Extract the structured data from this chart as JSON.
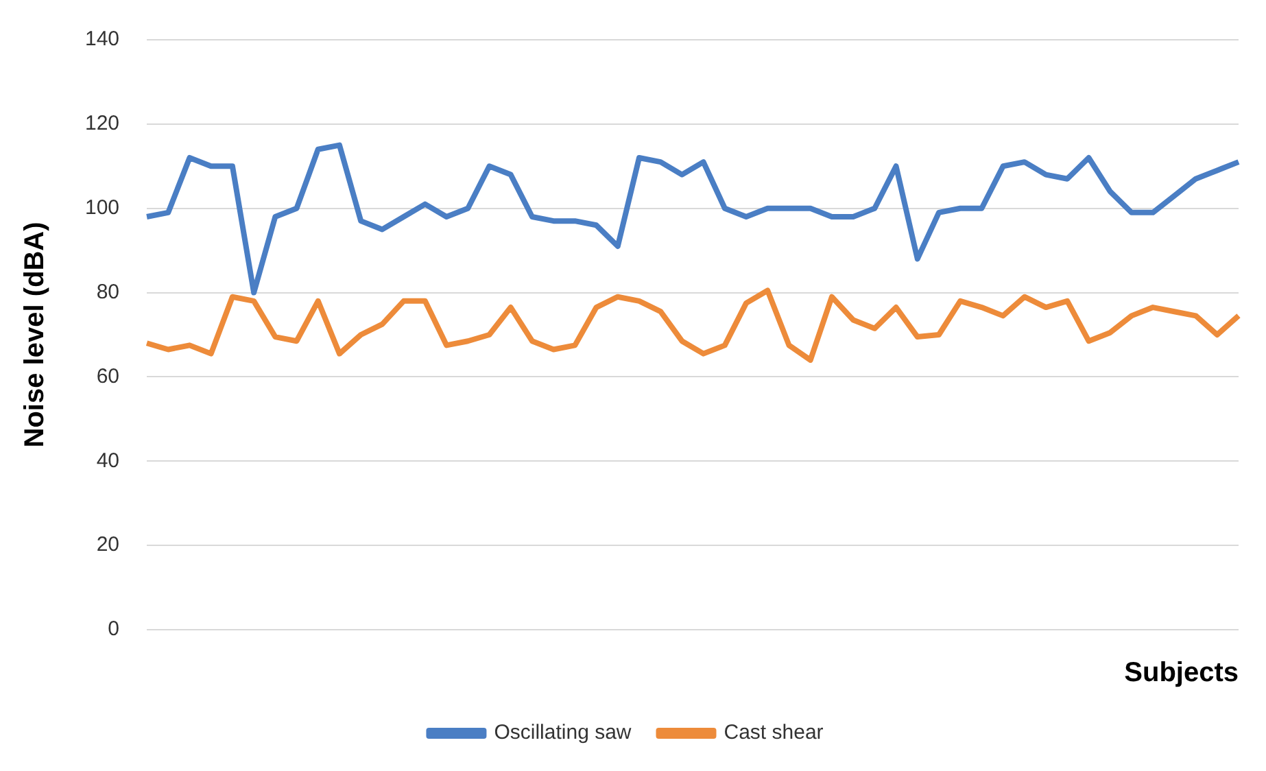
{
  "chart_data": {
    "type": "line",
    "xlabel": "Subjects",
    "ylabel": "Noise level (dBA)",
    "categories": [
      null,
      null,
      null,
      null,
      null,
      null,
      null,
      null,
      null,
      null,
      null,
      null,
      null,
      null,
      null,
      null,
      null,
      null,
      null,
      null,
      null,
      null,
      null,
      null,
      null,
      null,
      null,
      null,
      null,
      null,
      null,
      null,
      null,
      null,
      null,
      null,
      null,
      null,
      null,
      null,
      null,
      null,
      null,
      null,
      null,
      null,
      null,
      null,
      null,
      null,
      null,
      null
    ],
    "series": [
      {
        "name": "Oscillating saw",
        "color": "#4a7ec4",
        "values": [
          98,
          99,
          112,
          110,
          110,
          80,
          98,
          100,
          114,
          115,
          97,
          95,
          98,
          101,
          98,
          100,
          110,
          108,
          98,
          97,
          97,
          96,
          91,
          112,
          111,
          108,
          111,
          100,
          98,
          100,
          100,
          100,
          98,
          98,
          100,
          110,
          88,
          99,
          100,
          100,
          110,
          111,
          108,
          107,
          112,
          104,
          99,
          99,
          103,
          107,
          109,
          111
        ]
      },
      {
        "name": "Cast shear",
        "color": "#ed8b3a",
        "values": [
          68,
          66.5,
          67.5,
          65.5,
          79,
          78,
          69.5,
          68.5,
          78,
          65.5,
          70,
          72.5,
          78,
          78,
          67.5,
          68.5,
          70,
          76.5,
          68.5,
          66.5,
          67.5,
          76.5,
          79,
          78,
          75.5,
          68.5,
          65.5,
          67.5,
          77.5,
          80.5,
          67.5,
          64,
          79,
          73.5,
          71.5,
          76.5,
          69.5,
          70,
          78,
          76.5,
          74.5,
          79,
          76.5,
          78,
          68.5,
          70.5,
          74.5,
          76.5,
          75.5,
          74.5,
          70,
          74.5
        ]
      }
    ],
    "ylim": [
      0,
      140
    ],
    "yticks": [
      0,
      20,
      40,
      60,
      80,
      100,
      120,
      140
    ],
    "grid": "y",
    "legend": "bottom",
    "marker": "none",
    "line_style": "solid",
    "tick_labels": "y"
  }
}
